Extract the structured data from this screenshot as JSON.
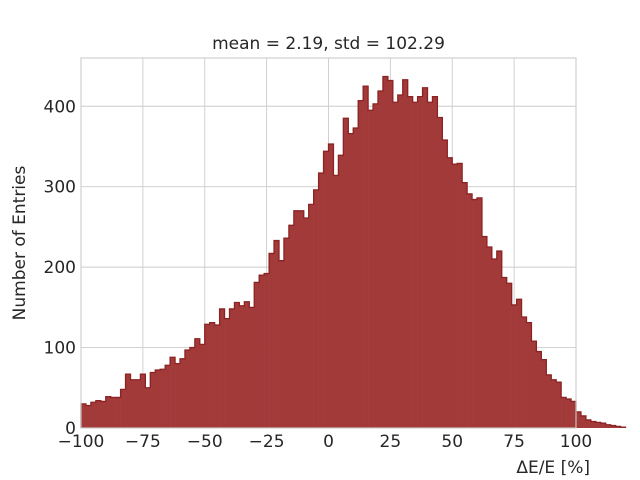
{
  "chart_data": {
    "type": "bar",
    "title": "mean = 2.19, std = 102.29",
    "xlabel": "ΔE/E [%]",
    "ylabel": "Number of Entries",
    "xlim": [
      -100,
      100
    ],
    "ylim": [
      0,
      460
    ],
    "xticks": [
      -100,
      -75,
      -50,
      -25,
      0,
      25,
      50,
      75,
      100
    ],
    "xtick_labels": [
      "−100",
      "−75",
      "−50",
      "−25",
      "0",
      "25",
      "50",
      "75",
      "100"
    ],
    "yticks": [
      0,
      100,
      200,
      300,
      400
    ],
    "ytick_labels": [
      "0",
      "100",
      "200",
      "300",
      "400"
    ],
    "grid": true,
    "color": "#a33a3a",
    "edge_color": "#8b2323",
    "bins": {
      "start": -100,
      "width": 2,
      "counts": [
        30,
        28,
        32,
        34,
        33,
        39,
        38,
        38,
        48,
        67,
        60,
        60,
        67,
        50,
        69,
        72,
        73,
        78,
        88,
        80,
        86,
        97,
        100,
        111,
        104,
        129,
        131,
        128,
        148,
        136,
        148,
        156,
        152,
        157,
        150,
        181,
        190,
        192,
        217,
        233,
        208,
        236,
        252,
        270,
        270,
        261,
        278,
        296,
        317,
        344,
        353,
        314,
        339,
        385,
        366,
        373,
        407,
        425,
        395,
        403,
        419,
        437,
        432,
        405,
        414,
        433,
        412,
        405,
        412,
        423,
        405,
        412,
        386,
        358,
        336,
        328,
        329,
        305,
        291,
        284,
        286,
        238,
        225,
        210,
        220,
        187,
        180,
        153,
        160,
        138,
        131,
        108,
        95,
        85,
        66,
        60,
        57,
        38,
        36,
        33,
        20,
        15,
        10,
        8,
        7,
        6,
        4,
        3,
        2,
        1
      ]
    }
  }
}
